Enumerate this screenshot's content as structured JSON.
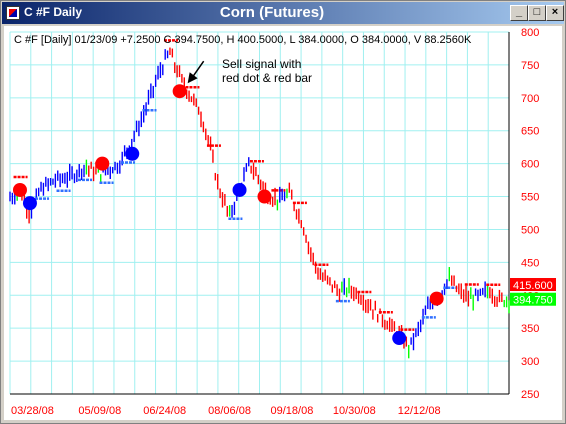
{
  "window": {
    "title": "C #F Daily",
    "chart_title": "Corn (Futures)",
    "buttons": {
      "minimize": "_",
      "maximize": "□",
      "close": "×"
    }
  },
  "info_line": "C #F [Daily] 01/23/09 +7.2500 C 394.7500, H 400.5000, L 384.0000, O 384.0000, V 88.2560K",
  "annotation": {
    "line1": "Sell signal with",
    "line2": "red dot & red bar"
  },
  "price_tags": {
    "upper": "415.600",
    "lower": "394.750",
    "upper_color": "#ff0000",
    "lower_color": "#00ff00"
  },
  "colors": {
    "up": "#0000ff",
    "down": "#ff0000",
    "neutral": "#00ff00",
    "grid": "#a0f0f0",
    "buy_dot": "#0000ff",
    "sell_dot": "#ff0000",
    "title_color": "#ff0000"
  },
  "chart_data": {
    "type": "bar",
    "subtype": "ohlc-price-chart",
    "ylim": [
      250,
      800
    ],
    "y_ticks": [
      250,
      300,
      350,
      400,
      450,
      500,
      550,
      600,
      650,
      700,
      750,
      800
    ],
    "x_ticks": [
      "03/28/08",
      "05/09/08",
      "06/24/08",
      "08/06/08",
      "09/18/08",
      "10/30/08",
      "12/12/08"
    ],
    "x_tick_positions": [
      0.045,
      0.18,
      0.31,
      0.44,
      0.565,
      0.69,
      0.82
    ],
    "price_path": [
      [
        0.0,
        548
      ],
      [
        0.02,
        560
      ],
      [
        0.04,
        525
      ],
      [
        0.06,
        560
      ],
      [
        0.09,
        575
      ],
      [
        0.12,
        580
      ],
      [
        0.15,
        595
      ],
      [
        0.18,
        585
      ],
      [
        0.2,
        592
      ],
      [
        0.22,
        600
      ],
      [
        0.24,
        630
      ],
      [
        0.26,
        660
      ],
      [
        0.28,
        700
      ],
      [
        0.3,
        740
      ],
      [
        0.32,
        770
      ],
      [
        0.33,
        750
      ],
      [
        0.345,
        725
      ],
      [
        0.36,
        705
      ],
      [
        0.38,
        680
      ],
      [
        0.4,
        630
      ],
      [
        0.41,
        590
      ],
      [
        0.42,
        560
      ],
      [
        0.44,
        520
      ],
      [
        0.46,
        560
      ],
      [
        0.48,
        600
      ],
      [
        0.5,
        575
      ],
      [
        0.52,
        550
      ],
      [
        0.54,
        545
      ],
      [
        0.56,
        555
      ],
      [
        0.58,
        520
      ],
      [
        0.59,
        500
      ],
      [
        0.6,
        470
      ],
      [
        0.62,
        430
      ],
      [
        0.64,
        420
      ],
      [
        0.66,
        405
      ],
      [
        0.68,
        410
      ],
      [
        0.7,
        400
      ],
      [
        0.72,
        385
      ],
      [
        0.74,
        370
      ],
      [
        0.76,
        355
      ],
      [
        0.78,
        340
      ],
      [
        0.8,
        320
      ],
      [
        0.82,
        350
      ],
      [
        0.84,
        385
      ],
      [
        0.86,
        400
      ],
      [
        0.88,
        425
      ],
      [
        0.9,
        405
      ],
      [
        0.92,
        395
      ],
      [
        0.94,
        398
      ],
      [
        0.96,
        408
      ],
      [
        0.98,
        393
      ]
    ],
    "signals": [
      {
        "x": 0.02,
        "y": 560,
        "type": "sell"
      },
      {
        "x": 0.04,
        "y": 540,
        "type": "buy"
      },
      {
        "x": 0.185,
        "y": 600,
        "type": "sell"
      },
      {
        "x": 0.245,
        "y": 615,
        "type": "buy"
      },
      {
        "x": 0.34,
        "y": 710,
        "type": "sell"
      },
      {
        "x": 0.46,
        "y": 560,
        "type": "buy"
      },
      {
        "x": 0.51,
        "y": 550,
        "type": "sell"
      },
      {
        "x": 0.78,
        "y": 335,
        "type": "buy"
      },
      {
        "x": 0.855,
        "y": 395,
        "type": "sell"
      }
    ]
  }
}
